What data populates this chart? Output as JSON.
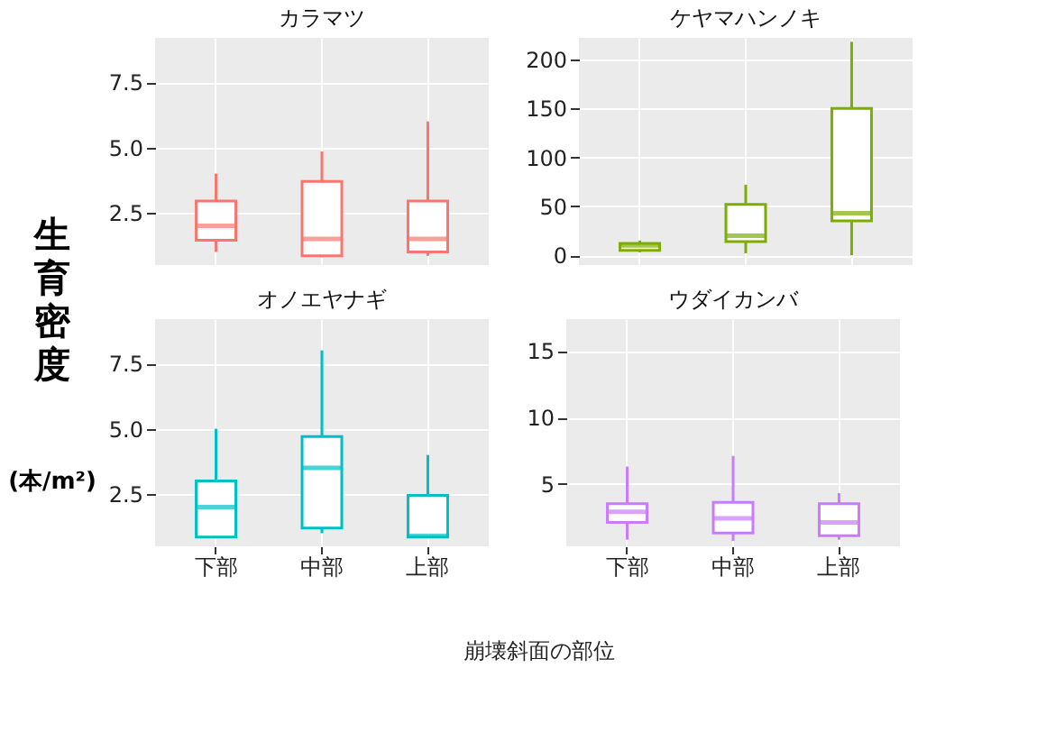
{
  "chart_data": [
    {
      "type": "box",
      "title": "カラマツ",
      "ylabel": "生育密度 (本/m²)",
      "categories": [
        null,
        null,
        null
      ],
      "ylim": [
        0.5,
        9.2
      ],
      "yticks": [
        {
          "value": 2.5,
          "label": "2.5"
        },
        {
          "value": 5.0,
          "label": "5.0"
        },
        {
          "value": 7.5,
          "label": "7.5"
        }
      ],
      "grid": true,
      "tick_labels": "y",
      "color": "#f8766d",
      "boxes": [
        {
          "low": 1.0,
          "q1": 1.45,
          "median": 2.0,
          "q3": 2.95,
          "high": 4.0
        },
        {
          "low": 0.8,
          "q1": 0.85,
          "median": 1.5,
          "q3": 3.7,
          "high": 4.85
        },
        {
          "low": 0.85,
          "q1": 1.0,
          "median": 1.5,
          "q3": 2.95,
          "high": 6.0
        }
      ]
    },
    {
      "type": "box",
      "title": "ケヤマハンノキ",
      "categories": [
        null,
        null,
        null
      ],
      "ylim": [
        -10,
        222
      ],
      "yticks": [
        0,
        50,
        100,
        150,
        200
      ],
      "grid": true,
      "tick_labels": "y",
      "color": "#7cae00",
      "boxes": [
        {
          "low": 3,
          "q1": 5,
          "median": 10,
          "q3": 12,
          "high": 15
        },
        {
          "low": 2,
          "q1": 14,
          "median": 20,
          "q3": 52,
          "high": 72
        },
        {
          "low": 0,
          "q1": 35,
          "median": 43,
          "q3": 150,
          "high": 218
        }
      ]
    },
    {
      "type": "box",
      "title": "オノエヤナギ",
      "xlabel": "崩壊斜面の部位",
      "categories": [
        "下部",
        "中部",
        "上部"
      ],
      "ylim": [
        0.5,
        9.2
      ],
      "yticks": [
        {
          "value": 2.5,
          "label": "2.5"
        },
        {
          "value": 5.0,
          "label": "5.0"
        },
        {
          "value": 7.5,
          "label": "7.5"
        }
      ],
      "grid": true,
      "color": "#00bfc4",
      "boxes": [
        {
          "low": 0.85,
          "q1": 0.85,
          "median": 2.0,
          "q3": 3.0,
          "high": 5.0
        },
        {
          "low": 1.0,
          "q1": 1.2,
          "median": 3.5,
          "q3": 4.7,
          "high": 8.0
        },
        {
          "low": 0.85,
          "q1": 0.85,
          "median": 0.9,
          "q3": 2.45,
          "high": 4.0
        }
      ]
    },
    {
      "type": "box",
      "title": "ウダイカンバ",
      "categories": [
        "下部",
        "中部",
        "上部"
      ],
      "ylim": [
        0.3,
        17.4
      ],
      "yticks": [
        5,
        10,
        15
      ],
      "grid": true,
      "color": "#c77cff",
      "boxes": [
        {
          "low": 0.8,
          "q1": 2.1,
          "median": 2.9,
          "q3": 3.5,
          "high": 6.3
        },
        {
          "low": 0.7,
          "q1": 1.3,
          "median": 2.4,
          "q3": 3.6,
          "high": 7.1
        },
        {
          "low": 0.8,
          "q1": 1.1,
          "median": 2.1,
          "q3": 3.5,
          "high": 4.3
        }
      ]
    }
  ]
}
